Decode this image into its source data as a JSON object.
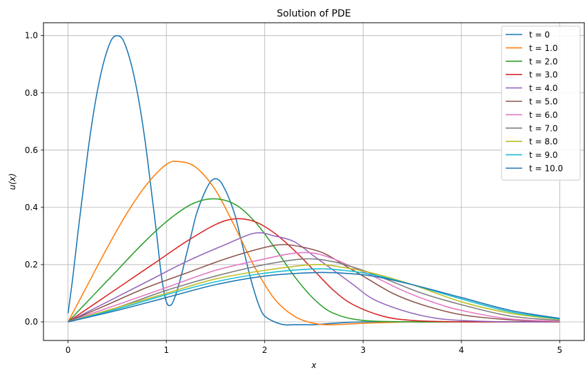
{
  "chart_data": {
    "type": "line",
    "title": "Solution of PDE",
    "xlabel": "x",
    "ylabel": "u(x)",
    "xlim": [
      -0.25,
      5.25
    ],
    "ylim": [
      -0.065,
      1.045
    ],
    "xticks": [
      0,
      1,
      2,
      3,
      4,
      5
    ],
    "xtick_labels": [
      "0",
      "1",
      "2",
      "3",
      "4",
      "5"
    ],
    "yticks": [
      0.0,
      0.2,
      0.4,
      0.6,
      0.8,
      1.0
    ],
    "ytick_labels": [
      "0.0",
      "0.2",
      "0.4",
      "0.6",
      "0.8",
      "1.0"
    ],
    "grid": true,
    "legend_position": "top-right",
    "series": [
      {
        "name": "t = 0",
        "color": "#1f77b4",
        "x": [
          0,
          0.05,
          0.1,
          0.15,
          0.2,
          0.25,
          0.3,
          0.35,
          0.4,
          0.45,
          0.5,
          0.55,
          0.6,
          0.65,
          0.7,
          0.75,
          0.8,
          0.85,
          0.9,
          0.95,
          1.0,
          1.05,
          1.1,
          1.15,
          1.2,
          1.25,
          1.3,
          1.35,
          1.4,
          1.45,
          1.5,
          1.55,
          1.6,
          1.65,
          1.7,
          1.75,
          1.8,
          1.85,
          1.9,
          1.95,
          2.0,
          2.1,
          2.2,
          2.3,
          2.4,
          2.5,
          2.7,
          3.0,
          3.5,
          4.0,
          5.0
        ],
        "y": [
          0.03,
          0.16,
          0.31,
          0.45,
          0.59,
          0.71,
          0.81,
          0.89,
          0.95,
          0.99,
          1.0,
          0.99,
          0.95,
          0.89,
          0.81,
          0.71,
          0.59,
          0.45,
          0.31,
          0.16,
          0.07,
          0.06,
          0.1,
          0.16,
          0.23,
          0.3,
          0.37,
          0.42,
          0.46,
          0.49,
          0.5,
          0.49,
          0.46,
          0.42,
          0.37,
          0.3,
          0.23,
          0.16,
          0.1,
          0.05,
          0.02,
          0.0,
          -0.01,
          -0.01,
          -0.01,
          -0.01,
          -0.005,
          0.0,
          0.0,
          0.0,
          0.0
        ]
      },
      {
        "name": "t = 1.0",
        "color": "#ff7f0e",
        "x": [
          0,
          0.2,
          0.4,
          0.6,
          0.8,
          1.0,
          1.13,
          1.3,
          1.5,
          1.7,
          1.9,
          2.1,
          2.3,
          2.5,
          2.7,
          3.0,
          3.5,
          4.0,
          5.0
        ],
        "y": [
          0.0,
          0.13,
          0.26,
          0.38,
          0.48,
          0.55,
          0.56,
          0.54,
          0.46,
          0.33,
          0.19,
          0.08,
          0.02,
          -0.005,
          -0.01,
          -0.005,
          0.0,
          0.0,
          0.0
        ]
      },
      {
        "name": "t = 2.0",
        "color": "#2ca02c",
        "x": [
          0,
          0.25,
          0.5,
          0.75,
          1.0,
          1.25,
          1.48,
          1.7,
          1.9,
          2.1,
          2.3,
          2.5,
          2.7,
          3.0,
          3.5,
          4.0,
          5.0
        ],
        "y": [
          0.0,
          0.09,
          0.18,
          0.27,
          0.35,
          0.41,
          0.43,
          0.41,
          0.35,
          0.26,
          0.16,
          0.08,
          0.03,
          0.005,
          0.0,
          0.0,
          0.0
        ]
      },
      {
        "name": "t = 3.0",
        "color": "#d62728",
        "x": [
          0,
          0.3,
          0.6,
          0.9,
          1.2,
          1.5,
          1.7,
          1.9,
          2.1,
          2.3,
          2.5,
          2.7,
          2.9,
          3.2,
          3.5,
          4.0,
          5.0
        ],
        "y": [
          0.0,
          0.07,
          0.14,
          0.21,
          0.28,
          0.34,
          0.36,
          0.35,
          0.31,
          0.25,
          0.18,
          0.11,
          0.06,
          0.02,
          0.005,
          0.0,
          0.0
        ]
      },
      {
        "name": "t = 4.0",
        "color": "#9467bd",
        "x": [
          0,
          0.4,
          0.8,
          1.2,
          1.6,
          1.9,
          2.1,
          2.3,
          2.5,
          2.7,
          2.9,
          3.1,
          3.4,
          3.7,
          4.0,
          4.5,
          5.0
        ],
        "y": [
          0.0,
          0.07,
          0.14,
          0.21,
          0.27,
          0.31,
          0.3,
          0.28,
          0.23,
          0.18,
          0.13,
          0.08,
          0.04,
          0.015,
          0.005,
          0.0,
          0.0
        ]
      },
      {
        "name": "t = 5.0",
        "color": "#8c564b",
        "x": [
          0,
          0.4,
          0.8,
          1.2,
          1.6,
          2.0,
          2.2,
          2.4,
          2.6,
          2.8,
          3.0,
          3.3,
          3.6,
          4.0,
          4.5,
          5.0
        ],
        "y": [
          0.0,
          0.06,
          0.12,
          0.17,
          0.22,
          0.26,
          0.27,
          0.26,
          0.24,
          0.2,
          0.16,
          0.1,
          0.06,
          0.025,
          0.007,
          0.0
        ]
      },
      {
        "name": "t = 6.0",
        "color": "#e377c2",
        "x": [
          0,
          0.5,
          1.0,
          1.5,
          2.0,
          2.3,
          2.5,
          2.7,
          2.9,
          3.1,
          3.4,
          3.7,
          4.0,
          4.5,
          5.0
        ],
        "y": [
          0.0,
          0.06,
          0.12,
          0.18,
          0.22,
          0.24,
          0.24,
          0.22,
          0.19,
          0.16,
          0.11,
          0.07,
          0.04,
          0.01,
          0.002
        ]
      },
      {
        "name": "t = 7.0",
        "color": "#7f7f7f",
        "x": [
          0,
          0.5,
          1.0,
          1.5,
          2.0,
          2.4,
          2.7,
          3.0,
          3.3,
          3.6,
          4.0,
          4.5,
          5.0
        ],
        "y": [
          0.0,
          0.05,
          0.11,
          0.16,
          0.2,
          0.22,
          0.21,
          0.18,
          0.14,
          0.1,
          0.06,
          0.02,
          0.005
        ]
      },
      {
        "name": "t = 8.0",
        "color": "#bcbd22",
        "x": [
          0,
          0.5,
          1.0,
          1.5,
          2.0,
          2.5,
          2.8,
          3.1,
          3.5,
          4.0,
          4.5,
          5.0
        ],
        "y": [
          0.0,
          0.05,
          0.1,
          0.15,
          0.18,
          0.2,
          0.19,
          0.17,
          0.13,
          0.07,
          0.03,
          0.008
        ]
      },
      {
        "name": "t = 9.0",
        "color": "#17becf",
        "x": [
          0,
          0.5,
          1.0,
          1.5,
          2.0,
          2.5,
          2.8,
          3.1,
          3.5,
          4.0,
          4.5,
          5.0
        ],
        "y": [
          0.0,
          0.045,
          0.095,
          0.14,
          0.17,
          0.185,
          0.18,
          0.165,
          0.13,
          0.08,
          0.035,
          0.01
        ]
      },
      {
        "name": "t = 10.0",
        "color": "#1f77b4",
        "x": [
          0,
          0.5,
          1.0,
          1.5,
          2.0,
          2.5,
          2.8,
          3.1,
          3.5,
          4.0,
          4.5,
          5.0
        ],
        "y": [
          0.0,
          0.04,
          0.085,
          0.13,
          0.16,
          0.172,
          0.17,
          0.16,
          0.13,
          0.085,
          0.04,
          0.012
        ]
      }
    ]
  }
}
